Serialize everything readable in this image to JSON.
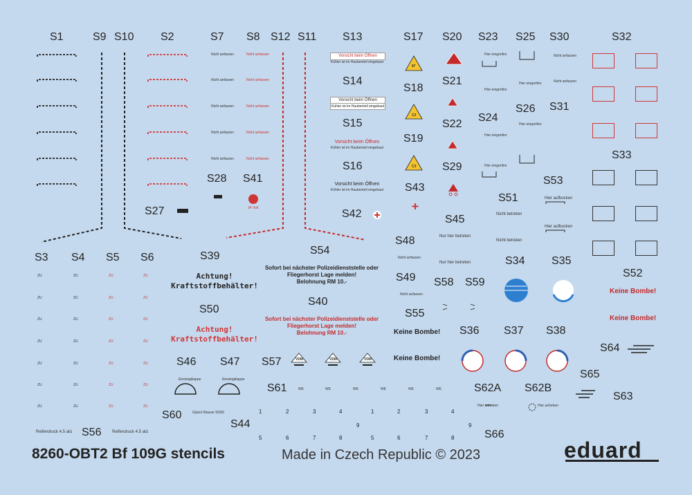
{
  "labels": {
    "S1": "S1",
    "S9": "S9",
    "S10": "S10",
    "S2": "S2",
    "S7": "S7",
    "S8": "S8",
    "S12": "S12",
    "S11": "S11",
    "S13": "S13",
    "S17": "S17",
    "S20": "S20",
    "S23": "S23",
    "S25": "S25",
    "S30": "S30",
    "S32": "S32",
    "S14": "S14",
    "S18": "S18",
    "S21": "S21",
    "S26": "S26",
    "S31": "S31",
    "S24": "S24",
    "S15": "S15",
    "S22": "S22",
    "S19": "S19",
    "S33": "S33",
    "S16": "S16",
    "S29": "S29",
    "S28": "S28",
    "S41": "S41",
    "S53": "S53",
    "S43": "S43",
    "S51": "S51",
    "S27": "S27",
    "S42": "S42",
    "S45": "S45",
    "S48": "S48",
    "S3": "S3",
    "S4": "S4",
    "S5": "S5",
    "S6": "S6",
    "S39": "S39",
    "S54": "S54",
    "S34": "S34",
    "S35": "S35",
    "S52": "S52",
    "S49": "S49",
    "S58": "S58",
    "S59": "S59",
    "S40": "S40",
    "S50": "S50",
    "S55": "S55",
    "S36": "S36",
    "S37": "S37",
    "S38": "S38",
    "S64": "S64",
    "S46": "S46",
    "S47": "S47",
    "S57": "S57",
    "S65": "S65",
    "S61": "S61",
    "S62A": "S62A",
    "S62B": "S62B",
    "S63": "S63",
    "S60": "S60",
    "S44": "S44",
    "S56": "S56",
    "S66": "S66"
  },
  "texts": {
    "vorsicht": "Vorsicht beim Öffnen",
    "kuhler": "Kühler ist im Haubenteil eingebaut",
    "nicht_anfassen": "Nicht anfassen",
    "hier_aufbocken": "Hier aufbocken",
    "hier_eingreifen": "Hier eingreifen",
    "nicht_betreten": "Nicht betreten",
    "nur_hier_betreten": "Nur hier betreten",
    "achtung_l1": "Achtung!",
    "achtung_l2": "Kraftstoffbehälter!",
    "sofort_l1": "Sofort bei nächster Polizeidienststelle oder",
    "sofort_l2": "Fliegerhorst Lage melden!",
    "sofort_l3": "Belohnung RM 10.-",
    "keine_bombe": "Keine Bombe!",
    "zu": "ZU",
    "we": "WE",
    "reifendruck": "Reifendruck 4.5 atü",
    "hier_anheben": "Hier anheben",
    "einsteigen": "Einsteigklappe",
    "glykol": "Glykol Wasser 50/50",
    "volt": "24 Volt",
    "tri_87": "87",
    "tri_c3": "C3",
    "vdm": "VDM",
    "nums_top": [
      "1",
      "2",
      "3",
      "4",
      "1",
      "2",
      "3",
      "4"
    ],
    "nums_nine": [
      "9",
      "9"
    ],
    "nums_bottom": [
      "5",
      "6",
      "7",
      "8",
      "5",
      "6",
      "7",
      "8"
    ]
  },
  "footer": {
    "title": "8260-OBT2 Bf 109G stencils",
    "made": "Made in Czech Republic © 2023",
    "brand": "eduard"
  },
  "colors": {
    "background": "#c5d9ee",
    "red": "#d03535",
    "yellow": "#f4c430",
    "blue": "#2f7fd0",
    "dark": "#222222"
  }
}
